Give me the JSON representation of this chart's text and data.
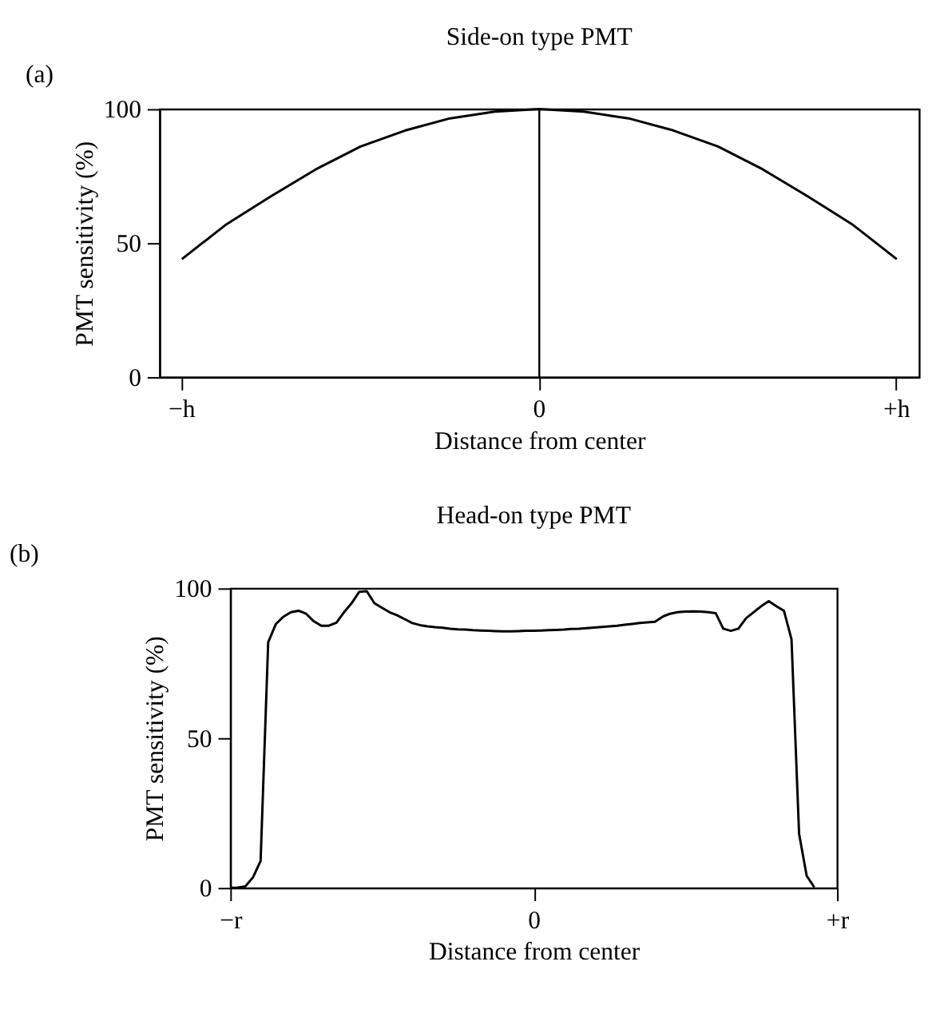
{
  "chart_data": [
    {
      "type": "line",
      "title": "Side-on type PMT",
      "xlabel": "Distance from center",
      "ylabel": "PMT sensitivity (%)",
      "annotations": [
        "(a)"
      ],
      "categories": [
        "−h",
        null,
        null,
        null,
        null,
        null,
        null,
        null,
        "0",
        null,
        null,
        null,
        null,
        null,
        null,
        null,
        "+h"
      ],
      "series": [
        {
          "color": "#000000",
          "values": [
            44,
            57,
            67.5,
            77.5,
            86,
            92,
            96.5,
            99,
            100,
            99,
            96.5,
            92,
            86,
            77.5,
            67.5,
            57,
            44
          ]
        }
      ],
      "ylim": [
        0,
        100
      ],
      "yticks": [
        0,
        50,
        100
      ],
      "ref_lines": [
        {
          "axis": "x",
          "value": "0",
          "color": "#000000"
        }
      ],
      "grid": false
    },
    {
      "type": "line",
      "title": "Head-on type PMT",
      "xlabel": "Distance from center",
      "ylabel": "PMT sensitivity (%)",
      "annotations": [
        "(b)"
      ],
      "categories": [
        "−r",
        null,
        null,
        null,
        null,
        null,
        null,
        null,
        null,
        null,
        null,
        null,
        null,
        null,
        null,
        null,
        null,
        null,
        null,
        null,
        null,
        null,
        null,
        null,
        null,
        null,
        null,
        null,
        null,
        null,
        null,
        null,
        null,
        null,
        null,
        null,
        null,
        null,
        null,
        null,
        "0",
        null,
        null,
        null,
        null,
        null,
        null,
        null,
        null,
        null,
        null,
        null,
        null,
        null,
        null,
        null,
        null,
        null,
        null,
        null,
        null,
        null,
        null,
        null,
        null,
        null,
        null,
        null,
        null,
        null,
        null,
        null,
        null,
        null,
        null,
        null,
        null,
        null,
        null,
        null,
        "+r"
      ],
      "series": [
        {
          "color": "#000000",
          "values": [
            0,
            0.1,
            0.5,
            3.5,
            9,
            82,
            88,
            90.5,
            92,
            92.5,
            91.5,
            89,
            87.5,
            87.5,
            88.5,
            92,
            95,
            98.8,
            99,
            95,
            93.5,
            92,
            91,
            89.7,
            88.4,
            87.7,
            87.3,
            87,
            86.8,
            86.5,
            86.3,
            86.2,
            86,
            85.9,
            85.8,
            85.7,
            85.6,
            85.6,
            85.7,
            85.8,
            85.8,
            85.9,
            86,
            86.1,
            86.2,
            86.4,
            86.5,
            86.7,
            86.9,
            87.1,
            87.3,
            87.5,
            87.8,
            88.1,
            88.4,
            88.6,
            88.8,
            90.5,
            91.5,
            92,
            92.2,
            92.3,
            92.2,
            92,
            91.7,
            86.5,
            85.8,
            86.5,
            90,
            92,
            94,
            95.7,
            94,
            92.5,
            83,
            18,
            4,
            0.2,
            null,
            null,
            null
          ]
        }
      ],
      "ylim": [
        0,
        100
      ],
      "yticks": [
        0,
        50,
        100
      ],
      "grid": false
    }
  ]
}
